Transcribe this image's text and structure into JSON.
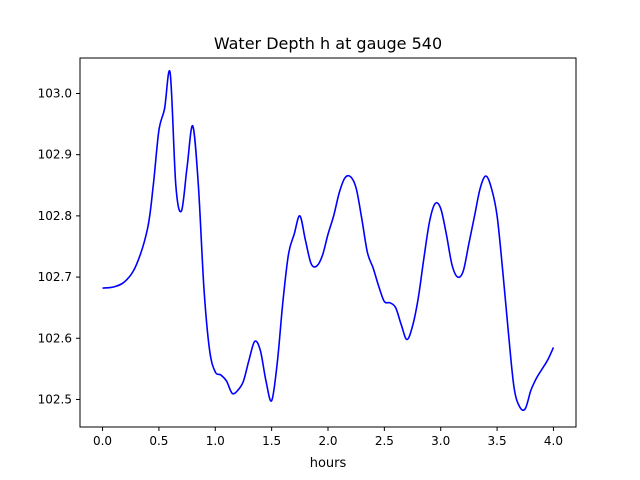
{
  "chart_data": {
    "type": "line",
    "title": "Water Depth h at gauge 540",
    "xlabel": "hours",
    "ylabel": "",
    "xlim": [
      -0.2,
      4.2
    ],
    "ylim": [
      102.455,
      103.058
    ],
    "xticks": [
      0.0,
      0.5,
      1.0,
      1.5,
      2.0,
      2.5,
      3.0,
      3.5,
      4.0
    ],
    "xtick_labels": [
      "0.0",
      "0.5",
      "1.0",
      "1.5",
      "2.0",
      "2.5",
      "3.0",
      "3.5",
      "4.0"
    ],
    "yticks": [
      102.5,
      102.6,
      102.7,
      102.8,
      102.9,
      103.0
    ],
    "ytick_labels": [
      "102.5",
      "102.6",
      "102.7",
      "102.8",
      "102.9",
      "103.0"
    ],
    "grid": false,
    "line_color": "#0000ff",
    "series": [
      {
        "x": [
          0.0,
          0.1,
          0.2,
          0.3,
          0.4,
          0.45,
          0.5,
          0.55,
          0.6,
          0.65,
          0.7,
          0.75,
          0.8,
          0.85,
          0.9,
          0.95,
          1.0,
          1.05,
          1.1,
          1.15,
          1.2,
          1.25,
          1.3,
          1.35,
          1.4,
          1.45,
          1.5,
          1.55,
          1.6,
          1.65,
          1.7,
          1.75,
          1.8,
          1.85,
          1.9,
          1.95,
          2.0,
          2.05,
          2.1,
          2.15,
          2.2,
          2.25,
          2.3,
          2.35,
          2.4,
          2.45,
          2.5,
          2.55,
          2.6,
          2.65,
          2.7,
          2.75,
          2.8,
          2.85,
          2.9,
          2.95,
          3.0,
          3.05,
          3.1,
          3.15,
          3.2,
          3.25,
          3.3,
          3.35,
          3.4,
          3.45,
          3.5,
          3.55,
          3.6,
          3.65,
          3.7,
          3.75,
          3.8,
          3.85,
          3.9,
          3.95,
          4.0
        ],
        "y": [
          102.682,
          102.684,
          102.693,
          102.72,
          102.78,
          102.85,
          102.94,
          102.975,
          103.033,
          102.85,
          102.808,
          102.88,
          102.947,
          102.85,
          102.68,
          102.58,
          102.545,
          102.54,
          102.53,
          102.51,
          102.515,
          102.53,
          102.565,
          102.595,
          102.58,
          102.53,
          102.498,
          102.56,
          102.66,
          102.738,
          102.77,
          102.8,
          102.76,
          102.722,
          102.718,
          102.735,
          102.77,
          102.8,
          102.838,
          102.862,
          102.864,
          102.845,
          102.795,
          102.74,
          102.715,
          102.685,
          102.66,
          102.658,
          102.65,
          102.622,
          102.598,
          102.62,
          102.665,
          102.73,
          102.79,
          102.82,
          102.812,
          102.77,
          102.72,
          102.7,
          102.71,
          102.755,
          102.8,
          102.845,
          102.865,
          102.845,
          102.8,
          102.71,
          102.61,
          102.52,
          102.488,
          102.485,
          102.515,
          102.535,
          102.55,
          102.565,
          102.585
        ]
      }
    ]
  }
}
